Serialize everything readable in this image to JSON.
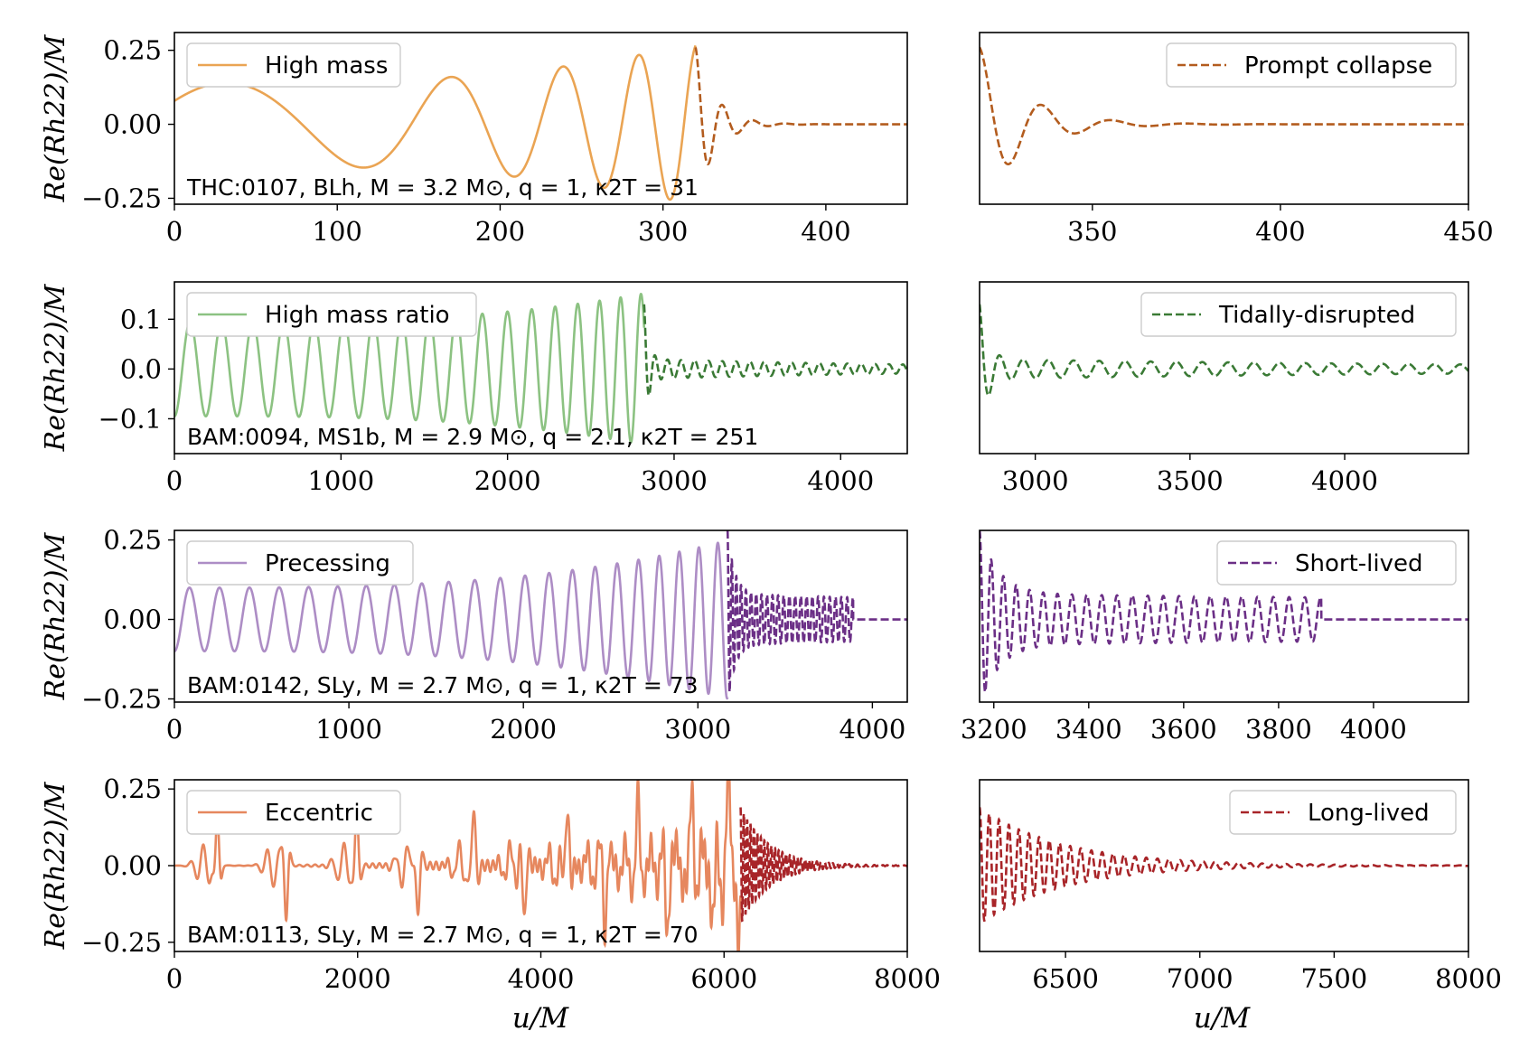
{
  "figure": {
    "ylabel": "Re(Rh22)/M",
    "xlabel": "u/M"
  },
  "chart_data": [
    {
      "type": "line",
      "panel": "row1-left",
      "legend": "High mass",
      "legend_placement": "upper-left",
      "annotation": "THC:0107, BLh, M = 3.2 M⊙, q = 1, κ2T = 31",
      "color": "#eaa453",
      "postmerger_color": "#b35c1e",
      "xlim": [
        0,
        450
      ],
      "ylim": [
        -0.27,
        0.31
      ],
      "xticks": [
        0,
        100,
        200,
        300,
        400
      ],
      "yticks": [
        "0.25",
        "0.00",
        "-0.25"
      ],
      "ytick_values": [
        0.25,
        0.0,
        -0.25
      ],
      "merger_time": 320,
      "wave": {
        "f0": 0.0048,
        "f1": 0.033,
        "a0": 0.14,
        "a1": 0.29,
        "phase": 0.6,
        "end": 333,
        "pm": {
          "A": 0.26,
          "tau": 12,
          "f": 0.045,
          "osc": 0.0,
          "tau2": 400,
          "stop": 450
        }
      }
    },
    {
      "type": "line",
      "panel": "row1-right",
      "legend": "Prompt collapse",
      "legend_placement": "upper-right",
      "color": "#b35c1e",
      "dashed": true,
      "xlim": [
        320,
        450
      ],
      "ylim": [
        -0.27,
        0.31
      ],
      "xticks": [
        350,
        400,
        450
      ],
      "merger_time": 320
    },
    {
      "type": "line",
      "panel": "row2-left",
      "legend": "High mass ratio",
      "legend_placement": "upper-left",
      "annotation": "BAM:0094, MS1b, M = 2.9 M⊙, q = 2.1, κ2T = 251",
      "color": "#8cc282",
      "postmerger_color": "#3a7a35",
      "xlim": [
        0,
        4400
      ],
      "ylim": [
        -0.17,
        0.175
      ],
      "xticks": [
        0,
        1000,
        2000,
        3000,
        4000
      ],
      "yticks": [
        "0.1",
        "0.0",
        "-0.1"
      ],
      "ytick_values": [
        0.1,
        0.0,
        -0.1
      ],
      "merger_time": 2820,
      "wave": {
        "f0": 0.0053,
        "f1": 0.0085,
        "a0": 0.095,
        "a1": 0.155,
        "phase": -1.57,
        "end": 2870,
        "pm": {
          "A": 0.11,
          "tau": 25,
          "f": 0.012,
          "osc": 0.02,
          "tau2": 2000,
          "stop": 4400
        }
      }
    },
    {
      "type": "line",
      "panel": "row2-right",
      "legend": "Tidally-disrupted",
      "legend_placement": "upper-right",
      "color": "#3a7a35",
      "dashed": true,
      "xlim": [
        2820,
        4400
      ],
      "ylim": [
        -0.17,
        0.175
      ],
      "xticks": [
        3000,
        3500,
        4000
      ],
      "merger_time": 2820
    },
    {
      "type": "line",
      "panel": "row3-left",
      "legend": "Precessing",
      "legend_placement": "upper-left",
      "annotation": "BAM:0142, SLy, M = 2.7 M⊙, q = 1, κ2T = 73",
      "color": "#ad8dc5",
      "postmerger_color": "#6b2f86",
      "xlim": [
        0,
        4200
      ],
      "ylim": [
        -0.26,
        0.28
      ],
      "xticks": [
        0,
        1000,
        2000,
        3000,
        4000
      ],
      "yticks": [
        "0.25",
        "0.00",
        "-0.25"
      ],
      "ytick_values": [
        0.25,
        0.0,
        -0.25
      ],
      "merger_time": 3170,
      "wave": {
        "f0": 0.0058,
        "f1": 0.0095,
        "a0": 0.1,
        "a1": 0.25,
        "phase": -1.57,
        "end": 3180,
        "pm": {
          "A": 0.2,
          "tau": 40,
          "f": 0.03,
          "osc": 0.08,
          "tau2": 5000,
          "stop": 3890
        }
      }
    },
    {
      "type": "line",
      "panel": "row3-right",
      "legend": "Short-lived",
      "legend_placement": "upper-right",
      "color": "#6b2f86",
      "dashed": true,
      "xlim": [
        3170,
        4200
      ],
      "ylim": [
        -0.26,
        0.28
      ],
      "xticks": [
        3200,
        3400,
        3600,
        3800,
        4000
      ],
      "merger_time": 3170
    },
    {
      "type": "line",
      "panel": "row4-left",
      "legend": "Eccentric",
      "legend_placement": "upper-left",
      "annotation": "BAM:0113, SLy, M = 2.7 M⊙, q = 1, κ2T = 70",
      "color": "#e6875e",
      "postmerger_color": "#a82428",
      "xlim": [
        0,
        8000
      ],
      "ylim": [
        -0.28,
        0.28
      ],
      "xticks": [
        0,
        2000,
        4000,
        6000,
        8000
      ],
      "yticks": [
        "0.25",
        "0.00",
        "-0.25"
      ],
      "ytick_values": [
        0.25,
        0.0,
        -0.25
      ],
      "merger_time": 6180,
      "eccentric": true,
      "wave": {
        "end": 6200,
        "pm": {
          "A": 0.18,
          "tau": 300,
          "f": 0.02,
          "osc": 0.01,
          "tau2": 600,
          "stop": 8000
        }
      }
    },
    {
      "type": "line",
      "panel": "row4-right",
      "legend": "Long-lived",
      "legend_placement": "upper-right",
      "color": "#a82428",
      "dashed": true,
      "xlim": [
        6180,
        8000
      ],
      "ylim": [
        -0.28,
        0.28
      ],
      "xticks": [
        6500,
        7000,
        7500,
        8000
      ],
      "merger_time": 6180
    }
  ]
}
